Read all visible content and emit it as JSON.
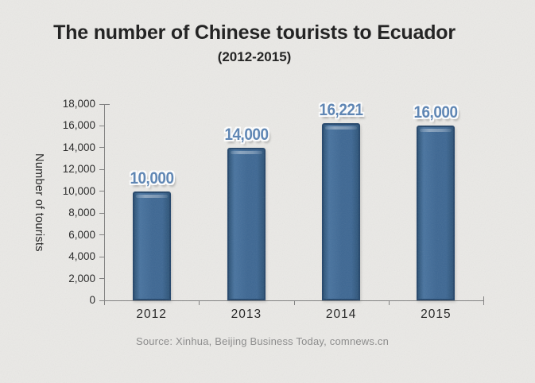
{
  "colors": {
    "background": "#eae9e6",
    "bar_main": "#3d6793",
    "bar_light": "#48739f",
    "bar_dark": "#2d5479",
    "bar_border": "#24466b",
    "value_label": "#5b84b4",
    "axis": "#7f7f7f",
    "text": "#1c1c1c",
    "source_text": "#8b8b8b"
  },
  "chart_data": {
    "type": "bar",
    "title": "The number of Chinese tourists to Ecuador",
    "subtitle": "(2012-2015)",
    "categories": [
      "2012",
      "2013",
      "2014",
      "2015"
    ],
    "values": [
      10000,
      14000,
      16221,
      16000
    ],
    "value_labels": [
      "10,000",
      "14,000",
      "16,221",
      "16,000"
    ],
    "xlabel": "",
    "ylabel": "Number of tourists",
    "ylim": [
      0,
      18000
    ],
    "ytick_step": 2000,
    "ytick_labels": [
      "0",
      "2,000",
      "4,000",
      "6,000",
      "8,000",
      "10,000",
      "12,000",
      "14,000",
      "16,000",
      "18,000"
    ],
    "grid": false,
    "legend": "none",
    "bar_orientation": "vertical"
  },
  "footer": {
    "source": "Source: Xinhua, Beijing Business Today, comnews.cn"
  }
}
